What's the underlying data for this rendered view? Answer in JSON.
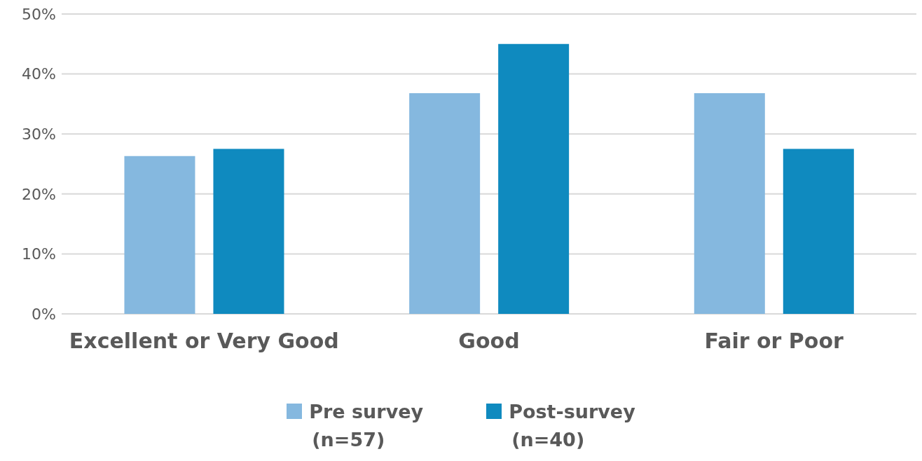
{
  "chart_data": {
    "type": "bar",
    "categories": [
      "Excellent or Very Good",
      "Good",
      "Fair or Poor"
    ],
    "series": [
      {
        "name": "Pre survey\n(n=57)",
        "color": "#85b8df",
        "values": [
          26.3,
          36.8,
          36.8
        ]
      },
      {
        "name": "Post-survey\n(n=40)",
        "color": "#0f8abf",
        "values": [
          27.5,
          45,
          27.5
        ]
      }
    ],
    "ylim": [
      0,
      50
    ],
    "yticks": [
      {
        "value": 0,
        "label": "0%"
      },
      {
        "value": 10,
        "label": "10%"
      },
      {
        "value": 20,
        "label": "20%"
      },
      {
        "value": 30,
        "label": "30%"
      },
      {
        "value": 40,
        "label": "40%"
      },
      {
        "value": 50,
        "label": "50%"
      }
    ],
    "grid": "y",
    "legend": "bottom"
  }
}
